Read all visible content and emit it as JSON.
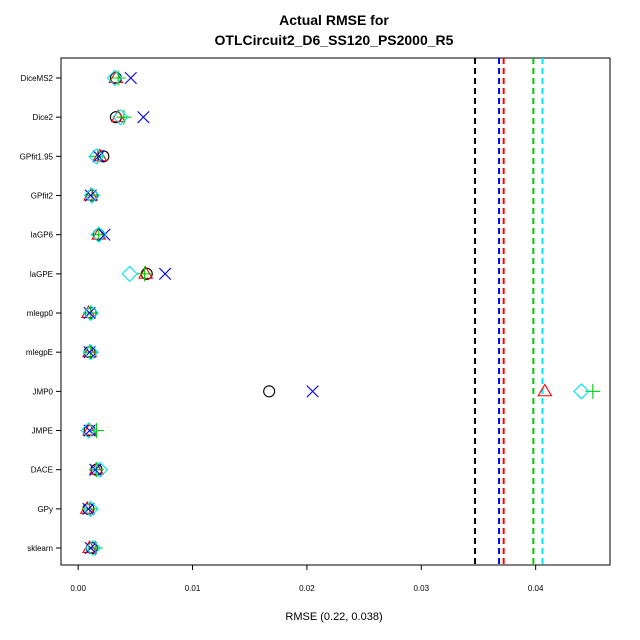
{
  "chart_data": {
    "type": "scatter",
    "title_line1": "Actual RMSE for",
    "title_line2": "OTLCircuit2_D6_SS120_PS2000_R5",
    "xlabel": "RMSE (0.22, 0.038)",
    "xlim": [
      -0.0015,
      0.0465
    ],
    "xticks": [
      0.0,
      0.01,
      0.02,
      0.03,
      0.04
    ],
    "xtick_labels": [
      "0.00",
      "0.01",
      "0.02",
      "0.03",
      "0.04"
    ],
    "categories": [
      "DiceMS2",
      "Dice2",
      "GPfit1.95",
      "GPfit2",
      "laGP6",
      "laGPE",
      "mlegp0",
      "mlegpE",
      "JMP0",
      "JMPE",
      "DACE",
      "GPy",
      "sklearn"
    ],
    "series": [
      {
        "marker": "circle",
        "color": "#000000",
        "values": [
          0.0033,
          0.0033,
          0.0022,
          0.0012,
          0.0018,
          0.006,
          0.0011,
          0.001,
          0.0167,
          0.001,
          0.0016,
          0.0009,
          0.0012
        ]
      },
      {
        "marker": "triangle",
        "color": "#ff0000",
        "values": [
          0.0033,
          0.0035,
          0.0019,
          0.0011,
          0.0018,
          0.0059,
          0.0009,
          0.001,
          0.0408,
          0.001,
          0.0016,
          0.0008,
          0.001
        ]
      },
      {
        "marker": "plus",
        "color": "#00cc00",
        "values": [
          0.0035,
          0.004,
          0.0017,
          0.0012,
          0.0018,
          0.0058,
          0.0011,
          0.0011,
          0.045,
          0.0016,
          0.0016,
          0.001,
          0.0015
        ]
      },
      {
        "marker": "x",
        "color": "#0000ff",
        "values": [
          0.0046,
          0.0057,
          0.0018,
          0.0011,
          0.0023,
          0.0076,
          0.001,
          0.001,
          0.0205,
          0.001,
          0.0015,
          0.0009,
          0.0011
        ]
      },
      {
        "marker": "diamond",
        "color": "#00e5ee",
        "values": [
          0.0032,
          0.0037,
          0.0016,
          0.0012,
          0.0018,
          0.0045,
          0.0011,
          0.0011,
          0.044,
          0.0009,
          0.0019,
          0.0011,
          0.0013
        ]
      }
    ],
    "vlines": [
      {
        "x": 0.0347,
        "color": "#000000"
      },
      {
        "x": 0.0368,
        "color": "#0000ff"
      },
      {
        "x": 0.0372,
        "color": "#ff0000"
      },
      {
        "x": 0.0398,
        "color": "#00cc00"
      },
      {
        "x": 0.0406,
        "color": "#00e5ee"
      }
    ]
  }
}
